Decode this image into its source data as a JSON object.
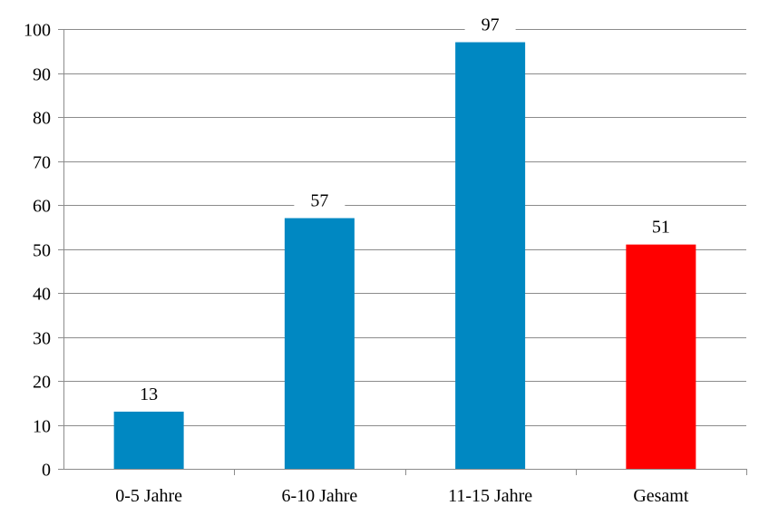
{
  "chart_data": {
    "type": "bar",
    "title": "",
    "xlabel": "",
    "ylabel": "",
    "categories": [
      "0-5 Jahre",
      "6-10 Jahre",
      "11-15 Jahre",
      "Gesamt"
    ],
    "values": [
      13,
      57,
      97,
      51
    ],
    "data_labels": [
      "13",
      "57",
      "97",
      "51"
    ],
    "bar_colors": [
      "#0088c2",
      "#0088c2",
      "#0088c2",
      "#ff0000"
    ],
    "ylim": [
      0,
      100
    ],
    "y_ticks": [
      0,
      10,
      20,
      30,
      40,
      50,
      60,
      70,
      80,
      90,
      100
    ],
    "y_tick_labels": [
      "0",
      "10",
      "20",
      "30",
      "40",
      "50",
      "60",
      "70",
      "80",
      "90",
      "100"
    ],
    "grid": true,
    "legend": "none"
  }
}
